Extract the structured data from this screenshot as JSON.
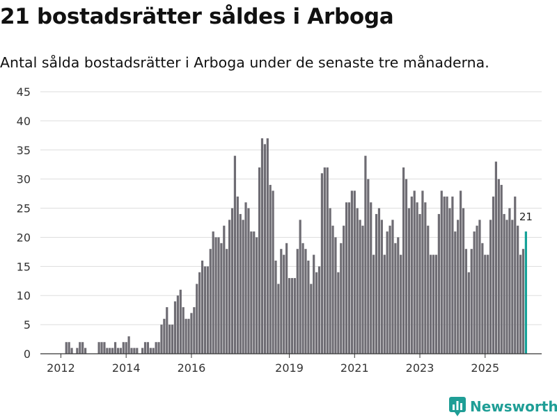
{
  "title": "21 bostadsrätter såldes i Arboga",
  "subtitle": "Antal sålda bostadsrätter i Arboga under de senaste tre månaderna.",
  "brand": {
    "name": "Newsworthy",
    "color": "#1f9e96"
  },
  "colors": {
    "bar": "#6e6c73",
    "highlight": "#13a198",
    "grid": "#dddddd",
    "axis": "#333333"
  },
  "chart_data": {
    "type": "bar",
    "title": "21 bostadsrätter såldes i Arboga",
    "xlabel": "",
    "ylabel": "",
    "ylim": [
      0,
      45
    ],
    "yticks": [
      0,
      5,
      10,
      15,
      20,
      25,
      30,
      35,
      40,
      45
    ],
    "grid": true,
    "start": "2011-07",
    "xtick_labels": [
      {
        "label": "2012",
        "index": 6
      },
      {
        "label": "2014",
        "index": 30
      },
      {
        "label": "2016",
        "index": 54
      },
      {
        "label": "2019",
        "index": 90
      },
      {
        "label": "2021",
        "index": 114
      },
      {
        "label": "2023",
        "index": 138
      },
      {
        "label": "2025",
        "index": 162
      }
    ],
    "values": [
      0,
      0,
      0,
      0,
      0,
      0,
      0,
      0,
      2,
      2,
      1,
      0,
      1,
      2,
      2,
      1,
      0,
      0,
      0,
      0,
      2,
      2,
      2,
      1,
      1,
      1,
      2,
      1,
      1,
      2,
      2,
      3,
      1,
      1,
      1,
      0,
      1,
      2,
      2,
      1,
      1,
      2,
      2,
      5,
      6,
      8,
      5,
      5,
      9,
      10,
      11,
      8,
      6,
      6,
      7,
      8,
      12,
      14,
      16,
      15,
      15,
      18,
      21,
      20,
      20,
      19,
      22,
      18,
      23,
      25,
      34,
      27,
      24,
      23,
      26,
      25,
      21,
      21,
      20,
      32,
      37,
      36,
      37,
      29,
      28,
      16,
      12,
      18,
      17,
      19,
      13,
      13,
      13,
      18,
      23,
      19,
      18,
      16,
      12,
      17,
      14,
      15,
      31,
      32,
      32,
      25,
      22,
      20,
      14,
      19,
      22,
      26,
      26,
      28,
      28,
      25,
      23,
      22,
      34,
      30,
      26,
      17,
      24,
      25,
      23,
      17,
      21,
      22,
      23,
      19,
      20,
      17,
      32,
      30,
      25,
      27,
      28,
      26,
      24,
      28,
      26,
      22,
      17,
      17,
      17,
      24,
      28,
      27,
      27,
      25,
      27,
      21,
      23,
      28,
      25,
      18,
      14,
      18,
      21,
      22,
      23,
      19,
      17,
      17,
      23,
      27,
      33,
      30,
      29,
      24,
      23,
      25,
      23,
      27,
      22,
      17,
      18,
      21
    ],
    "highlight_last": true,
    "annotation": {
      "label": "21"
    }
  }
}
